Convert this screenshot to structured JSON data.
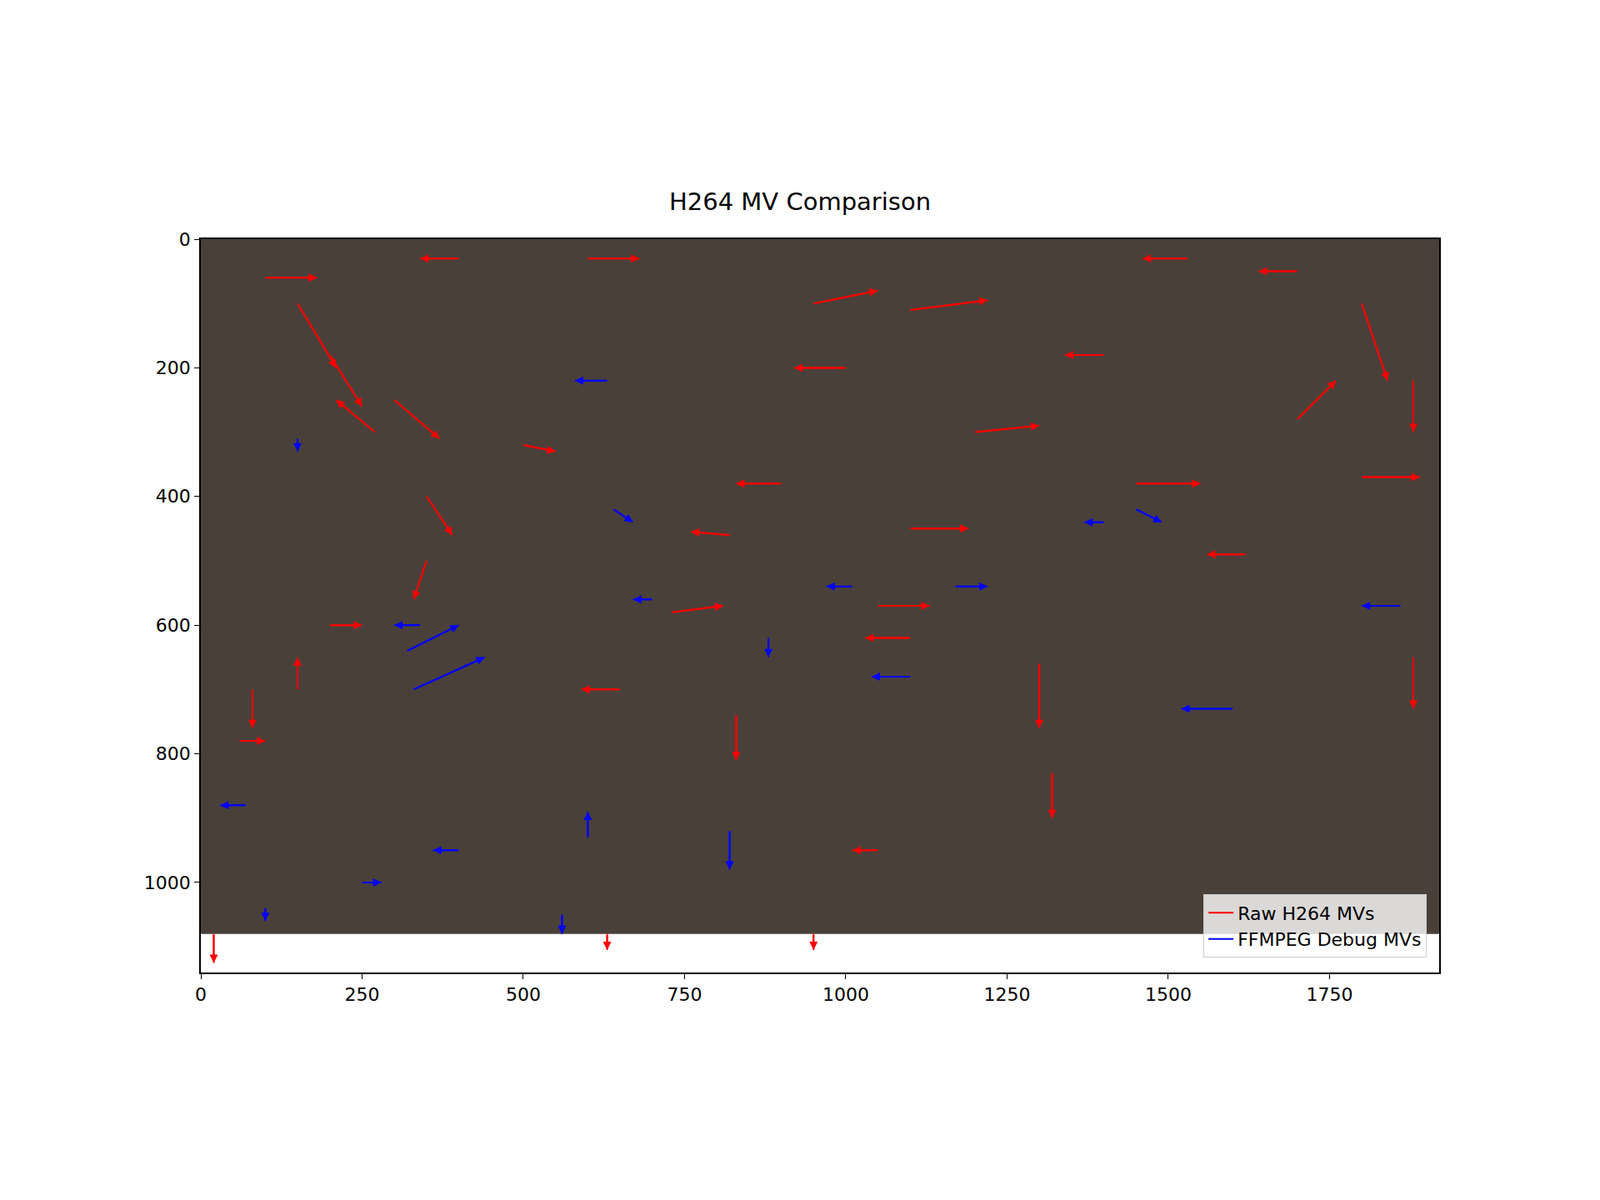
{
  "chart_data": {
    "type": "quiver",
    "title": "H264 MV Comparison",
    "image_size": [
      1920,
      1080
    ],
    "xlim": [
      0,
      1920
    ],
    "ylim": [
      1140,
      0
    ],
    "xticks": [
      0,
      250,
      500,
      750,
      1000,
      1250,
      1500,
      1750
    ],
    "yticks": [
      0,
      200,
      400,
      600,
      800,
      1000
    ],
    "grid": false,
    "legend": "lower right",
    "series": [
      {
        "name": "Raw H264 MVs",
        "color": "#ff0000",
        "x": [
          150,
          200,
          270,
          300,
          350,
          100,
          400,
          600,
          950,
          1100,
          1200,
          1000,
          900,
          1100,
          1450,
          1800,
          1800,
          1700,
          1880,
          1700,
          1620,
          1050,
          1100,
          820,
          730,
          650,
          830,
          1300,
          1320,
          1050,
          200,
          80,
          60,
          150,
          350,
          1880,
          20,
          630,
          950,
          500,
          1400,
          1530
        ],
        "y": [
          100,
          180,
          300,
          250,
          400,
          60,
          30,
          30,
          100,
          110,
          300,
          200,
          380,
          450,
          380,
          370,
          100,
          50,
          220,
          280,
          490,
          570,
          620,
          460,
          580,
          700,
          740,
          660,
          830,
          950,
          600,
          700,
          780,
          700,
          500,
          650,
          1080,
          1080,
          1080,
          320,
          180,
          30
        ],
        "u": [
          60,
          50,
          -60,
          70,
          40,
          80,
          -60,
          80,
          100,
          120,
          100,
          -80,
          -70,
          90,
          100,
          90,
          40,
          -60,
          0,
          60,
          -60,
          80,
          -70,
          -60,
          80,
          -60,
          0,
          0,
          0,
          -40,
          50,
          0,
          40,
          0,
          -20,
          0,
          0,
          0,
          0,
          50,
          -60,
          -70
        ],
        "v": [
          100,
          80,
          -50,
          60,
          60,
          0,
          0,
          0,
          -20,
          -15,
          -10,
          0,
          0,
          0,
          0,
          0,
          120,
          0,
          80,
          -60,
          0,
          0,
          0,
          -5,
          -10,
          0,
          70,
          100,
          70,
          0,
          0,
          60,
          0,
          -50,
          60,
          80,
          45,
          25,
          25,
          10,
          0,
          0
        ]
      },
      {
        "name": "FFMPEG Debug MVs",
        "color": "#0000ff",
        "x": [
          320,
          330,
          340,
          640,
          630,
          150,
          1860,
          1600,
          1100,
          1010,
          400,
          600,
          820,
          70,
          250,
          1170,
          880,
          560,
          1400,
          1450,
          100,
          700
        ],
        "y": [
          640,
          700,
          600,
          420,
          220,
          310,
          570,
          730,
          680,
          540,
          950,
          930,
          920,
          880,
          1000,
          540,
          620,
          1050,
          440,
          420,
          1040,
          560
        ],
        "u": [
          80,
          110,
          -40,
          30,
          -50,
          0,
          -60,
          -80,
          -60,
          -40,
          -40,
          0,
          0,
          -40,
          30,
          50,
          0,
          0,
          -30,
          40,
          0,
          -30
        ],
        "v": [
          -40,
          -50,
          0,
          20,
          0,
          20,
          0,
          0,
          0,
          0,
          0,
          -40,
          60,
          0,
          0,
          0,
          30,
          30,
          0,
          20,
          20,
          0
        ]
      }
    ]
  }
}
